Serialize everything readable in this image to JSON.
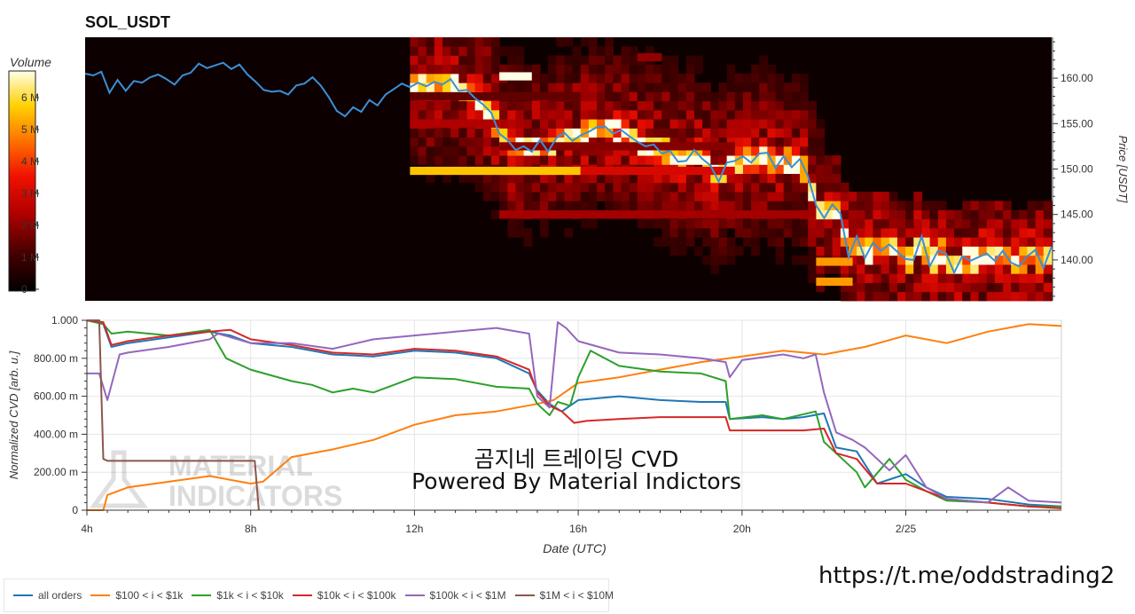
{
  "title": "SOL_USDT",
  "colorbar": {
    "label": "Volume",
    "ticks": [
      "0",
      "1 M",
      "2 M",
      "3 M",
      "4 M",
      "5 M",
      "6 M"
    ]
  },
  "watermark": {
    "title": "곰지네 트레이딩 CVD",
    "subtitle": "Powered By Material Indictors",
    "logo_line1": "MATERIAL",
    "logo_line2": "INDICATORS"
  },
  "url": "https://t.me/oddstrading2",
  "colors": {
    "all_orders": "#1f77b4",
    "r100_1k": "#ff7f0e",
    "r1k_10k": "#2ca02c",
    "r10k_100k": "#d62728",
    "r100k_1m": "#9467bd",
    "r1m_10m": "#8c564b",
    "price_line": "#3b8fd6",
    "heatmap_bg": "#0d0000"
  },
  "legend": [
    {
      "label": "all orders",
      "color": "#1f77b4"
    },
    {
      "label": "$100 < i < $1k",
      "color": "#ff7f0e"
    },
    {
      "label": "$1k < i < $10k",
      "color": "#2ca02c"
    },
    {
      "label": "$10k < i < $100k",
      "color": "#d62728"
    },
    {
      "label": "$100k < i < $1M",
      "color": "#9467bd"
    },
    {
      "label": "$1M < i < $10M",
      "color": "#8c564b"
    }
  ],
  "chart_data": [
    {
      "type": "heatmap",
      "title": "SOL_USDT",
      "ylabel": "Price [USDT]",
      "y_ticks": [
        "140.00",
        "145.00",
        "150.00",
        "155.00",
        "160.00"
      ],
      "y_tick_values": [
        140,
        145,
        150,
        155,
        160
      ],
      "ylim": [
        135.5,
        164.5
      ],
      "xlim": [
        4.0,
        27.8
      ],
      "colorbar_label": "Volume",
      "colorbar_range": [
        0,
        6700000
      ],
      "price_series": {
        "name": "price",
        "x": [
          4.0,
          4.2,
          4.4,
          4.6,
          4.8,
          5.0,
          5.2,
          5.4,
          5.6,
          5.8,
          6.0,
          6.2,
          6.4,
          6.6,
          6.8,
          7.0,
          7.2,
          7.4,
          7.6,
          7.8,
          8.0,
          8.2,
          8.4,
          8.6,
          8.8,
          9.0,
          9.2,
          9.4,
          9.6,
          9.8,
          10.0,
          10.2,
          10.4,
          10.6,
          10.8,
          11.0,
          11.2,
          11.4,
          11.6,
          11.8,
          12.0,
          12.2,
          12.4,
          12.6,
          12.8,
          13.0,
          13.2,
          13.4,
          13.6,
          13.8,
          14.0,
          14.2,
          14.4,
          14.6,
          14.8,
          15.0,
          15.2,
          15.4,
          15.6,
          15.8,
          16.0,
          16.2,
          16.4,
          16.6,
          16.8,
          17.0,
          17.2,
          17.4,
          17.6,
          17.8,
          18.0,
          18.2,
          18.4,
          18.6,
          18.8,
          19.0,
          19.2,
          19.4,
          19.6,
          19.8,
          20.0,
          20.2,
          20.4,
          20.6,
          20.8,
          21.0,
          21.2,
          21.4,
          21.6,
          21.8,
          22.0,
          22.2,
          22.4,
          22.6,
          22.8,
          23.0,
          23.2,
          23.4,
          23.6,
          23.8,
          24.0,
          24.2,
          24.4,
          24.6,
          24.8,
          25.0,
          25.2,
          25.4,
          25.6,
          25.8,
          26.0,
          26.2,
          26.4,
          26.6,
          26.8,
          27.0,
          27.2,
          27.4,
          27.6,
          27.8
        ],
        "y": [
          160.5,
          160.3,
          160.7,
          158.4,
          159.8,
          158.6,
          159.7,
          159.5,
          160.1,
          160.4,
          159.9,
          159.3,
          160.3,
          160.6,
          161.6,
          161.1,
          161.4,
          161.7,
          161.0,
          161.5,
          160.4,
          159.6,
          158.7,
          158.5,
          158.6,
          158.2,
          159.2,
          159.4,
          160.1,
          159.2,
          157.9,
          156.4,
          155.8,
          156.8,
          156.3,
          157.6,
          157.0,
          158.2,
          158.8,
          159.4,
          159.0,
          159.5,
          159.1,
          159.6,
          159.3,
          159.9,
          158.6,
          158.7,
          157.8,
          157.1,
          156.2,
          153.9,
          153.2,
          152.1,
          152.5,
          151.9,
          153.2,
          151.9,
          153.4,
          154.0,
          153.1,
          153.7,
          154.1,
          154.6,
          154.7,
          153.9,
          154.3,
          153.6,
          153.0,
          152.5,
          152.7,
          151.7,
          152.0,
          150.8,
          150.9,
          152.1,
          151.1,
          150.4,
          148.6,
          150.7,
          150.9,
          151.4,
          150.7,
          151.7,
          151.8,
          150.1,
          151.4,
          150.2,
          151.1,
          149.2,
          146.0,
          144.6,
          146.1,
          145.1,
          140.3,
          142.6,
          140.2,
          141.9,
          141.0,
          141.7,
          140.9,
          140.1,
          140.0,
          142.6,
          139.3,
          141.0,
          140.7,
          138.6,
          140.4,
          139.9,
          140.3,
          140.7,
          139.9,
          141.0,
          139.7,
          139.3,
          140.4,
          141.1,
          139.1,
          141.5
        ]
      },
      "heat_cells": [
        {
          "x0": 12.0,
          "x1": 16.2,
          "y": 149.8,
          "v": 0.82
        },
        {
          "x0": 16.2,
          "x1": 20.0,
          "y": 149.8,
          "v": 0.45
        },
        {
          "x0": 12.0,
          "x1": 14.2,
          "y": 155.0,
          "v": 0.35
        },
        {
          "x0": 14.2,
          "x1": 22.0,
          "y": 145.0,
          "v": 0.33
        },
        {
          "x0": 14.2,
          "x1": 20.0,
          "y": 152.5,
          "v": 0.28
        },
        {
          "x0": 22.0,
          "x1": 22.9,
          "y": 139.8,
          "v": 0.75
        },
        {
          "x0": 22.0,
          "x1": 22.9,
          "y": 137.6,
          "v": 0.75
        },
        {
          "x0": 12.0,
          "x1": 16.0,
          "y": 158.0,
          "v": 0.22
        },
        {
          "x0": 14.2,
          "x1": 15.0,
          "y": 160.2,
          "v": 1.0
        },
        {
          "x0": 17.6,
          "x1": 18.2,
          "y": 162.3,
          "v": 0.3
        }
      ]
    },
    {
      "type": "line",
      "title": "",
      "xlabel": "Date (UTC)",
      "ylabel": "Normalized CVD [arb. u.]",
      "x_ticks": [
        "4h",
        "8h",
        "12h",
        "16h",
        "20h",
        "2/25"
      ],
      "x_tick_values": [
        4,
        8,
        12,
        16,
        20,
        24
      ],
      "y_ticks": [
        "0",
        "200.00 m",
        "400.00 m",
        "600.00 m",
        "800.00 m",
        "1.000"
      ],
      "y_tick_values": [
        0,
        0.2,
        0.4,
        0.6,
        0.8,
        1.0
      ],
      "xlim": [
        4.0,
        27.8
      ],
      "ylim": [
        0,
        1.0
      ],
      "series": [
        {
          "name": "all orders",
          "color": "#1f77b4",
          "x": [
            4.0,
            4.4,
            4.6,
            5.0,
            6.0,
            7.0,
            7.5,
            8.0,
            9.0,
            10.0,
            11.0,
            12.0,
            13.0,
            14.0,
            14.8,
            15.0,
            15.3,
            15.6,
            16.0,
            17.0,
            18.0,
            19.0,
            19.6,
            19.7,
            20.5,
            21.0,
            21.5,
            22.0,
            22.3,
            22.8,
            23.3,
            24.0,
            24.5,
            25.0,
            26.0,
            27.0,
            27.8
          ],
          "y": [
            1.0,
            0.98,
            0.86,
            0.88,
            0.91,
            0.94,
            0.92,
            0.88,
            0.86,
            0.82,
            0.81,
            0.84,
            0.83,
            0.8,
            0.72,
            0.63,
            0.56,
            0.52,
            0.58,
            0.6,
            0.58,
            0.57,
            0.57,
            0.48,
            0.49,
            0.48,
            0.49,
            0.51,
            0.33,
            0.31,
            0.14,
            0.19,
            0.12,
            0.07,
            0.06,
            0.03,
            0.02
          ]
        },
        {
          "name": "$100 < i < $1k",
          "color": "#ff7f0e",
          "x": [
            4.0,
            4.4,
            4.5,
            5.0,
            6.0,
            7.0,
            8.0,
            8.3,
            9.0,
            10.0,
            11.0,
            12.0,
            13.0,
            14.0,
            15.0,
            15.4,
            15.8,
            16.0,
            17.0,
            18.0,
            19.0,
            20.0,
            21.0,
            22.0,
            23.0,
            24.0,
            25.0,
            25.5,
            26.0,
            27.0,
            27.8
          ],
          "y": [
            0.0,
            0.0,
            0.08,
            0.12,
            0.15,
            0.18,
            0.14,
            0.15,
            0.28,
            0.32,
            0.37,
            0.45,
            0.5,
            0.52,
            0.56,
            0.58,
            0.64,
            0.67,
            0.7,
            0.74,
            0.78,
            0.81,
            0.84,
            0.82,
            0.86,
            0.92,
            0.88,
            0.91,
            0.94,
            0.98,
            0.97
          ]
        },
        {
          "name": "$1k < i < $10k",
          "color": "#2ca02c",
          "x": [
            4.0,
            4.4,
            4.6,
            5.0,
            6.0,
            7.0,
            7.4,
            8.0,
            9.0,
            9.5,
            10.0,
            10.5,
            11.0,
            12.0,
            13.0,
            14.0,
            14.8,
            15.0,
            15.3,
            15.5,
            15.8,
            16.0,
            16.3,
            17.0,
            18.0,
            19.0,
            19.6,
            19.7,
            20.5,
            21.0,
            21.8,
            22.0,
            22.3,
            22.8,
            23.0,
            23.6,
            24.0,
            24.5,
            25.0,
            26.0,
            27.0,
            27.8
          ],
          "y": [
            1.0,
            0.98,
            0.93,
            0.94,
            0.92,
            0.95,
            0.8,
            0.74,
            0.68,
            0.66,
            0.62,
            0.64,
            0.62,
            0.7,
            0.69,
            0.65,
            0.64,
            0.56,
            0.5,
            0.57,
            0.55,
            0.7,
            0.84,
            0.76,
            0.73,
            0.72,
            0.68,
            0.48,
            0.5,
            0.48,
            0.52,
            0.36,
            0.3,
            0.2,
            0.12,
            0.27,
            0.16,
            0.1,
            0.05,
            0.04,
            0.02,
            0.02
          ]
        },
        {
          "name": "$10k < i < $100k",
          "color": "#d62728",
          "x": [
            4.0,
            4.4,
            4.6,
            5.0,
            6.0,
            7.0,
            7.5,
            8.0,
            9.0,
            10.0,
            11.0,
            12.0,
            13.0,
            14.0,
            14.8,
            15.0,
            15.3,
            15.6,
            15.9,
            16.2,
            17.0,
            18.0,
            19.0,
            19.6,
            19.7,
            20.5,
            21.0,
            21.5,
            22.0,
            22.3,
            22.8,
            23.3,
            24.0,
            24.5,
            25.0,
            26.0,
            27.0,
            27.8
          ],
          "y": [
            1.0,
            0.99,
            0.87,
            0.89,
            0.92,
            0.94,
            0.95,
            0.9,
            0.87,
            0.83,
            0.82,
            0.85,
            0.84,
            0.81,
            0.74,
            0.62,
            0.55,
            0.52,
            0.46,
            0.47,
            0.48,
            0.49,
            0.49,
            0.49,
            0.42,
            0.42,
            0.42,
            0.42,
            0.43,
            0.3,
            0.27,
            0.14,
            0.14,
            0.1,
            0.06,
            0.04,
            0.02,
            0.01
          ]
        },
        {
          "name": "$100k < i < $1M",
          "color": "#9467bd",
          "x": [
            4.0,
            4.3,
            4.5,
            4.8,
            5.0,
            6.0,
            7.0,
            7.2,
            8.0,
            9.0,
            10.0,
            11.0,
            12.0,
            13.0,
            14.0,
            14.8,
            15.0,
            15.3,
            15.5,
            15.7,
            16.0,
            17.0,
            18.0,
            19.0,
            19.6,
            19.7,
            20.0,
            21.0,
            21.5,
            21.8,
            22.0,
            22.3,
            22.7,
            23.0,
            23.6,
            24.0,
            24.5,
            25.0,
            26.0,
            26.5,
            27.0,
            27.8
          ],
          "y": [
            0.72,
            0.72,
            0.58,
            0.82,
            0.83,
            0.86,
            0.9,
            0.93,
            0.88,
            0.88,
            0.85,
            0.9,
            0.92,
            0.94,
            0.96,
            0.93,
            0.6,
            0.54,
            0.99,
            0.96,
            0.89,
            0.83,
            0.82,
            0.8,
            0.78,
            0.7,
            0.79,
            0.82,
            0.8,
            0.82,
            0.62,
            0.41,
            0.37,
            0.33,
            0.21,
            0.29,
            0.12,
            0.06,
            0.04,
            0.12,
            0.05,
            0.04
          ]
        },
        {
          "name": "$1M < i < $10M",
          "color": "#8c564b",
          "x": [
            4.0,
            4.3,
            4.4,
            4.5,
            8.0,
            8.1,
            8.2
          ],
          "y": [
            1.0,
            1.0,
            0.27,
            0.26,
            0.26,
            0.26,
            0.0
          ]
        }
      ]
    }
  ]
}
